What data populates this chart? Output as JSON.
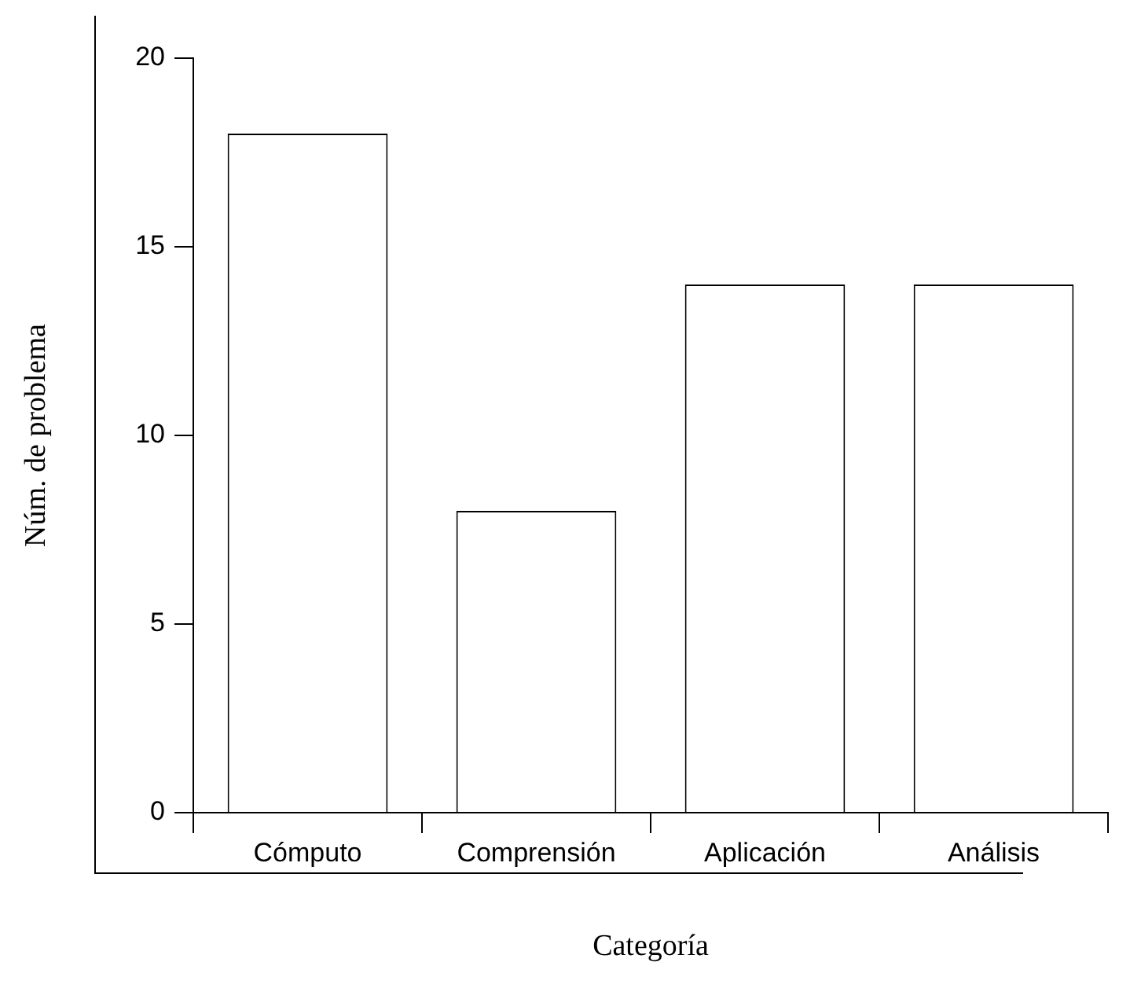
{
  "chart_data": {
    "type": "bar",
    "xlabel": "Categoría",
    "ylabel": "Núm. de problema",
    "categories": [
      "Cómputo",
      "Comprensión",
      "Aplicación",
      "Análisis"
    ],
    "values": [
      18,
      8,
      14,
      14
    ],
    "color": "#ffffff",
    "ylim": [
      0,
      20
    ],
    "yticks": [
      0,
      5,
      10,
      15,
      20
    ],
    "grid": false,
    "legend": false
  }
}
